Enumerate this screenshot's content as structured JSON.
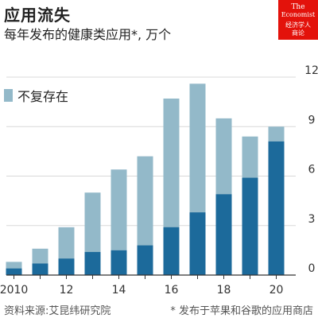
{
  "title": "应用流失",
  "subtitle": "每年发布的健康类应用*, 万个",
  "logo": {
    "line1": "The",
    "line2": "Economist",
    "line3": "经济学人",
    "line4": "商论"
  },
  "source": "资料来源:艾昆纬研究院",
  "note": "* 发布于苹果和谷歌的应用商店",
  "colors": {
    "total": "#93b9c9",
    "overlay": "#1c6a9b",
    "axis": "#333333"
  },
  "chart_data": {
    "type": "bar",
    "stacked_overlay": true,
    "categories": [
      "2010",
      "2011",
      "2012",
      "2013",
      "2014",
      "2015",
      "2016",
      "2017",
      "2018",
      "2019",
      "2020"
    ],
    "x_tick_labels": [
      {
        "index": 0,
        "label": "2010"
      },
      {
        "index": 2,
        "label": "12"
      },
      {
        "index": 4,
        "label": "14"
      },
      {
        "index": 6,
        "label": "16"
      },
      {
        "index": 8,
        "label": "18"
      },
      {
        "index": 10,
        "label": "20"
      }
    ],
    "series": [
      {
        "values": [
          0.8,
          1.6,
          2.9,
          5.0,
          6.4,
          7.2,
          10.7,
          11.6,
          9.5,
          8.4,
          9.0
        ]
      },
      {
        "name": "不复存在",
        "values": [
          0.4,
          0.7,
          1.0,
          1.4,
          1.5,
          1.8,
          2.9,
          3.8,
          4.9,
          5.9,
          8.1
        ]
      }
    ],
    "legend": {
      "label": "不复存在",
      "placement": "top-left"
    },
    "ylim": [
      0,
      12
    ],
    "y_ticks": [
      0,
      3,
      6,
      9,
      12
    ],
    "y_axis_side": "right",
    "grid": true
  }
}
